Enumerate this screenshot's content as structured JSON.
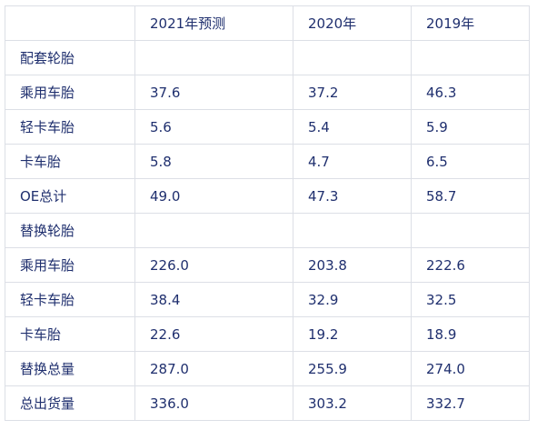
{
  "table": {
    "headers": [
      "",
      "2021年预测",
      "2020年",
      "2019年"
    ],
    "rows": [
      {
        "label": "配套轮胎",
        "v2021": "",
        "v2020": "",
        "v2019": ""
      },
      {
        "label": "乘用车胎",
        "v2021": "37.6",
        "v2020": "37.2",
        "v2019": "46.3"
      },
      {
        "label": "轻卡车胎",
        "v2021": "5.6",
        "v2020": "5.4",
        "v2019": "5.9"
      },
      {
        "label": "卡车胎",
        "v2021": "5.8",
        "v2020": "4.7",
        "v2019": "6.5"
      },
      {
        "label": "OE总计",
        "v2021": "49.0",
        "v2020": "47.3",
        "v2019": "58.7"
      },
      {
        "label": "替换轮胎",
        "v2021": "",
        "v2020": "",
        "v2019": ""
      },
      {
        "label": "乘用车胎",
        "v2021": "226.0",
        "v2020": "203.8",
        "v2019": "222.6"
      },
      {
        "label": "轻卡车胎",
        "v2021": "38.4",
        "v2020": "32.9",
        "v2019": "32.5"
      },
      {
        "label": "卡车胎",
        "v2021": "22.6",
        "v2020": "19.2",
        "v2019": "18.9"
      },
      {
        "label": "替换总量",
        "v2021": "287.0",
        "v2020": "255.9",
        "v2019": "274.0"
      },
      {
        "label": "总出货量",
        "v2021": "336.0",
        "v2020": "303.2",
        "v2019": "332.7"
      }
    ]
  }
}
